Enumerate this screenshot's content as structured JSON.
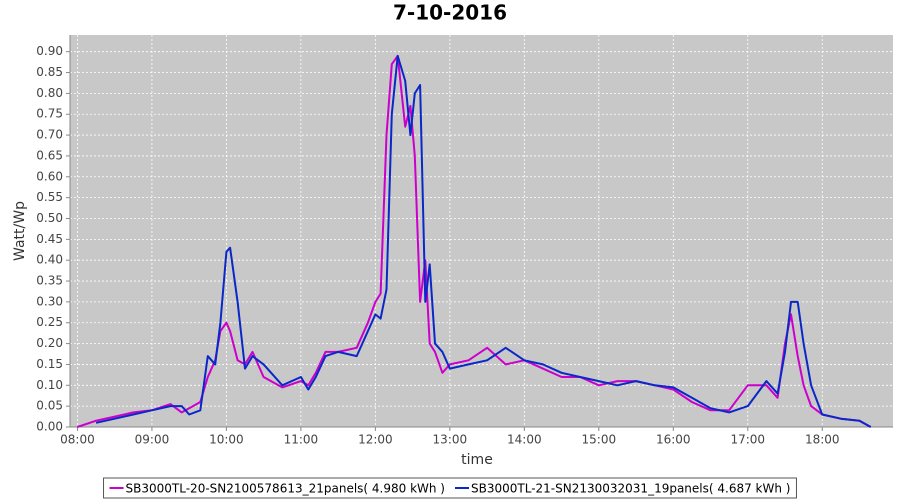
{
  "chart_data": {
    "type": "line",
    "title": "7-10-2016",
    "x_label": "time",
    "y_label": "Watt/Wp",
    "x": [
      8.0,
      8.25,
      8.5,
      8.75,
      9.0,
      9.25,
      9.4,
      9.5,
      9.65,
      9.75,
      9.85,
      9.92,
      10.0,
      10.05,
      10.15,
      10.25,
      10.35,
      10.5,
      10.75,
      11.0,
      11.1,
      11.2,
      11.33,
      11.5,
      11.75,
      11.9,
      12.0,
      12.07,
      12.15,
      12.22,
      12.3,
      12.4,
      12.47,
      12.53,
      12.6,
      12.67,
      12.73,
      12.8,
      12.9,
      13.0,
      13.25,
      13.5,
      13.75,
      14.0,
      14.25,
      14.5,
      14.75,
      15.0,
      15.25,
      15.5,
      15.75,
      16.0,
      16.25,
      16.5,
      16.75,
      17.0,
      17.25,
      17.4,
      17.5,
      17.58,
      17.67,
      17.75,
      17.85,
      18.0,
      18.25,
      18.5,
      18.65
    ],
    "series": [
      {
        "name": "SB3000TL-20-SN2100578613_21panels( 4.980 kWh )",
        "color": "#cc00cc",
        "values": [
          0.0,
          0.015,
          0.025,
          0.035,
          0.04,
          0.055,
          0.035,
          0.045,
          0.06,
          0.12,
          0.16,
          0.23,
          0.25,
          0.23,
          0.16,
          0.15,
          0.18,
          0.12,
          0.095,
          0.11,
          0.1,
          0.13,
          0.18,
          0.18,
          0.19,
          0.25,
          0.3,
          0.32,
          0.7,
          0.87,
          0.89,
          0.72,
          0.77,
          0.65,
          0.3,
          0.4,
          0.2,
          0.18,
          0.13,
          0.15,
          0.16,
          0.19,
          0.15,
          0.16,
          0.14,
          0.12,
          0.12,
          0.1,
          0.11,
          0.11,
          0.1,
          0.09,
          0.06,
          0.04,
          0.04,
          0.1,
          0.1,
          0.07,
          0.2,
          0.27,
          0.17,
          0.1,
          0.05,
          0.03,
          0.02,
          0.015,
          0.0
        ]
      },
      {
        "name": "SB3000TL-21-SN2130032031_19panels( 4.687 kWh )",
        "color": "#0a28c8",
        "values": [
          null,
          0.01,
          0.02,
          0.03,
          0.04,
          0.05,
          0.05,
          0.03,
          0.04,
          0.17,
          0.15,
          0.25,
          0.42,
          0.43,
          0.3,
          0.14,
          0.17,
          0.15,
          0.1,
          0.12,
          0.09,
          0.12,
          0.17,
          0.18,
          0.17,
          0.23,
          0.27,
          0.26,
          0.33,
          0.75,
          0.89,
          0.83,
          0.7,
          0.8,
          0.82,
          0.3,
          0.39,
          0.2,
          0.18,
          0.14,
          0.15,
          0.16,
          0.19,
          0.16,
          0.15,
          0.13,
          0.12,
          0.11,
          0.1,
          0.11,
          0.1,
          0.095,
          0.07,
          0.045,
          0.035,
          0.05,
          0.11,
          0.08,
          0.18,
          0.3,
          0.3,
          0.2,
          0.1,
          0.03,
          0.02,
          0.015,
          0.0
        ]
      }
    ],
    "xlim": [
      7.9,
      18.95
    ],
    "xticks": [
      {
        "value": 8,
        "label": "08:00"
      },
      {
        "value": 9,
        "label": "09:00"
      },
      {
        "value": 10,
        "label": "10:00"
      },
      {
        "value": 11,
        "label": "11:00"
      },
      {
        "value": 12,
        "label": "12:00"
      },
      {
        "value": 13,
        "label": "13:00"
      },
      {
        "value": 14,
        "label": "14:00"
      },
      {
        "value": 15,
        "label": "15:00"
      },
      {
        "value": 16,
        "label": "16:00"
      },
      {
        "value": 17,
        "label": "17:00"
      },
      {
        "value": 18,
        "label": "18:00"
      }
    ],
    "ylim": [
      0,
      0.94
    ],
    "yticks": [
      {
        "value": 0,
        "label": "0.00"
      },
      0.05,
      {
        "value": 0.1,
        "label": "0.10"
      },
      0.15,
      {
        "value": 0.2,
        "label": "0.20"
      },
      0.25,
      {
        "value": 0.3,
        "label": "0.30"
      },
      0.35,
      {
        "value": 0.4,
        "label": "0.40"
      },
      0.45,
      {
        "value": 0.5,
        "label": "0.50"
      },
      0.55,
      {
        "value": 0.6,
        "label": "0.60"
      },
      0.65,
      {
        "value": 0.7,
        "label": "0.70"
      },
      0.75,
      {
        "value": 0.8,
        "label": "0.80"
      },
      0.85,
      {
        "value": 0.9,
        "label": "0.90"
      }
    ],
    "grid": true
  }
}
